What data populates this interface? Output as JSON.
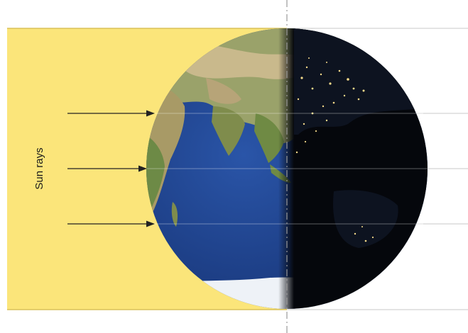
{
  "diagram": {
    "label": "Sun rays",
    "colors": {
      "sunlight": "#fbe57a",
      "sunlight_edge": "#d9c25a",
      "ocean_day": "#1c3f8f",
      "land_day": "#8a9a5a",
      "desert_day": "#c8b88a",
      "night": "#05070c",
      "city_lights": "#f3d98a",
      "ice": "#f4f6fa",
      "lines": "#bfbfbf",
      "arrows": "#222222",
      "axis": "#9a9a9a"
    }
  }
}
